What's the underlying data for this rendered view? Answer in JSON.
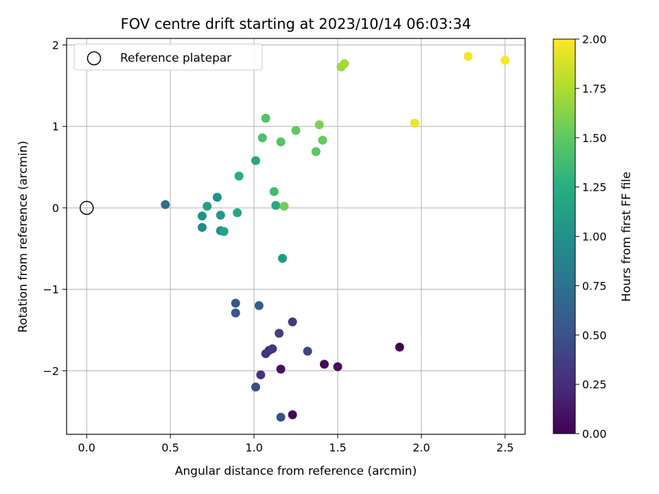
{
  "chart_data": {
    "type": "scatter",
    "title": "FOV centre drift starting at 2023/10/14 06:03:34",
    "xlabel": "Angular distance from reference (arcmin)",
    "ylabel": "Rotation from reference (arcmin)",
    "xlim": [
      -0.12,
      2.62
    ],
    "ylim": [
      -2.78,
      2.08
    ],
    "xticks": [
      0.0,
      0.5,
      1.0,
      1.5,
      2.0,
      2.5
    ],
    "xtick_labels": [
      "0.0",
      "0.5",
      "1.0",
      "1.5",
      "2.0",
      "2.5"
    ],
    "yticks": [
      -2,
      -1,
      0,
      1,
      2
    ],
    "ytick_labels": [
      "−2",
      "−1",
      "0",
      "1",
      "2"
    ],
    "grid": true,
    "legend": {
      "placement": "upper-left",
      "entries": [
        "Reference platepar"
      ]
    },
    "reference_point": {
      "x": 0.0,
      "y": 0.0
    },
    "colorbar": {
      "label": "Hours from first FF file",
      "colormap": "viridis",
      "range": [
        0.0,
        2.0
      ],
      "ticks": [
        0.0,
        0.25,
        0.5,
        0.75,
        1.0,
        1.25,
        1.5,
        1.75,
        2.0
      ],
      "tick_labels": [
        "0.00",
        "0.25",
        "0.50",
        "0.75",
        "1.00",
        "1.25",
        "1.50",
        "1.75",
        "2.00"
      ]
    },
    "points": [
      {
        "x": 1.87,
        "y": -1.71,
        "c": 0.0
      },
      {
        "x": 1.23,
        "y": -2.54,
        "c": 0.02
      },
      {
        "x": 1.42,
        "y": -1.92,
        "c": 0.05
      },
      {
        "x": 1.5,
        "y": -1.95,
        "c": 0.07
      },
      {
        "x": 1.16,
        "y": -1.98,
        "c": 0.1
      },
      {
        "x": 1.09,
        "y": -1.75,
        "c": 0.22
      },
      {
        "x": 1.04,
        "y": -2.05,
        "c": 0.27
      },
      {
        "x": 1.07,
        "y": -1.79,
        "c": 0.3
      },
      {
        "x": 1.11,
        "y": -1.73,
        "c": 0.32
      },
      {
        "x": 1.23,
        "y": -1.4,
        "c": 0.33
      },
      {
        "x": 1.15,
        "y": -1.54,
        "c": 0.38
      },
      {
        "x": 1.32,
        "y": -1.76,
        "c": 0.42
      },
      {
        "x": 1.01,
        "y": -2.2,
        "c": 0.45
      },
      {
        "x": 1.16,
        "y": -2.57,
        "c": 0.5
      },
      {
        "x": 0.89,
        "y": -1.29,
        "c": 0.52
      },
      {
        "x": 0.89,
        "y": -1.17,
        "c": 0.56
      },
      {
        "x": 1.03,
        "y": -1.2,
        "c": 0.6
      },
      {
        "x": 0.47,
        "y": 0.04,
        "c": 0.72
      },
      {
        "x": 0.69,
        "y": -0.24,
        "c": 0.93
      },
      {
        "x": 0.8,
        "y": -0.28,
        "c": 0.98
      },
      {
        "x": 0.69,
        "y": -0.1,
        "c": 1.0
      },
      {
        "x": 0.78,
        "y": 0.13,
        "c": 1.02
      },
      {
        "x": 0.8,
        "y": -0.09,
        "c": 1.04
      },
      {
        "x": 1.17,
        "y": -0.62,
        "c": 1.08
      },
      {
        "x": 0.72,
        "y": 0.02,
        "c": 1.12
      },
      {
        "x": 0.82,
        "y": -0.29,
        "c": 1.15
      },
      {
        "x": 0.9,
        "y": -0.06,
        "c": 1.18
      },
      {
        "x": 1.01,
        "y": 0.58,
        "c": 1.2
      },
      {
        "x": 1.13,
        "y": 0.03,
        "c": 1.22
      },
      {
        "x": 0.91,
        "y": 0.39,
        "c": 1.25
      },
      {
        "x": 1.12,
        "y": 0.2,
        "c": 1.38
      },
      {
        "x": 1.05,
        "y": 0.86,
        "c": 1.42
      },
      {
        "x": 1.07,
        "y": 1.1,
        "c": 1.44
      },
      {
        "x": 1.16,
        "y": 0.81,
        "c": 1.45
      },
      {
        "x": 1.37,
        "y": 0.69,
        "c": 1.48
      },
      {
        "x": 1.25,
        "y": 0.95,
        "c": 1.5
      },
      {
        "x": 1.41,
        "y": 0.83,
        "c": 1.52
      },
      {
        "x": 1.18,
        "y": 0.02,
        "c": 1.55
      },
      {
        "x": 1.39,
        "y": 1.02,
        "c": 1.6
      },
      {
        "x": 1.52,
        "y": 1.73,
        "c": 1.7
      },
      {
        "x": 1.54,
        "y": 1.77,
        "c": 1.72
      },
      {
        "x": 1.96,
        "y": 1.04,
        "c": 1.95
      },
      {
        "x": 2.28,
        "y": 1.86,
        "c": 1.97
      },
      {
        "x": 2.5,
        "y": 1.81,
        "c": 1.99
      }
    ]
  }
}
